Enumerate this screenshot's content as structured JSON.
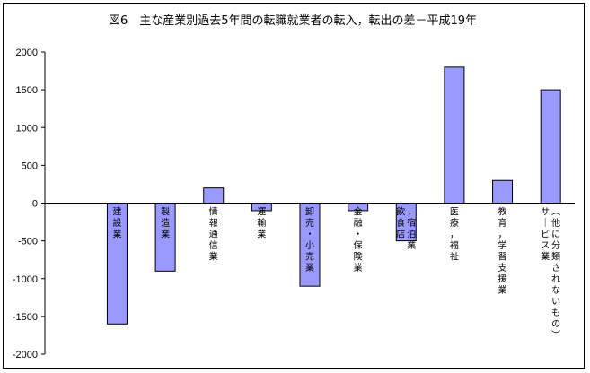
{
  "chart_data": {
    "type": "bar",
    "title": "図6　主な産業別過去5年間の転職就業者の転入，転出の差－平成19年",
    "xlabel": "",
    "ylabel": "",
    "ylim": [
      -2000,
      2000
    ],
    "yticks": [
      2000,
      1500,
      1000,
      500,
      0,
      -500,
      -1000,
      -1500,
      -2000
    ],
    "grid": false,
    "legend": "none",
    "categories": [
      "建設業",
      "製造業",
      "情報通信業",
      "運輸業",
      "卸売・小売業",
      "金融・保険業",
      "飲食店，宿泊業",
      "医療，福祉",
      "教育，学習支援業",
      "サービス業（他に分類されないもの）"
    ],
    "category_label_lines": [
      [
        "建設業"
      ],
      [
        "製造業"
      ],
      [
        "情報通信業"
      ],
      [
        "運輸業"
      ],
      [
        "卸売・小売業"
      ],
      [
        "金融・保険業"
      ],
      [
        "飲食店",
        "，宿泊業"
      ],
      [
        "医療，福祉"
      ],
      [
        "教育，学習支援業"
      ],
      [
        "サービス業",
        "（他に分類されないもの）"
      ]
    ],
    "values": [
      -1600,
      -900,
      200,
      -100,
      -1100,
      -100,
      -500,
      1800,
      300,
      1500
    ],
    "colors": {
      "bar_fill": "#9999ff",
      "bar_stroke": "#000000"
    }
  }
}
